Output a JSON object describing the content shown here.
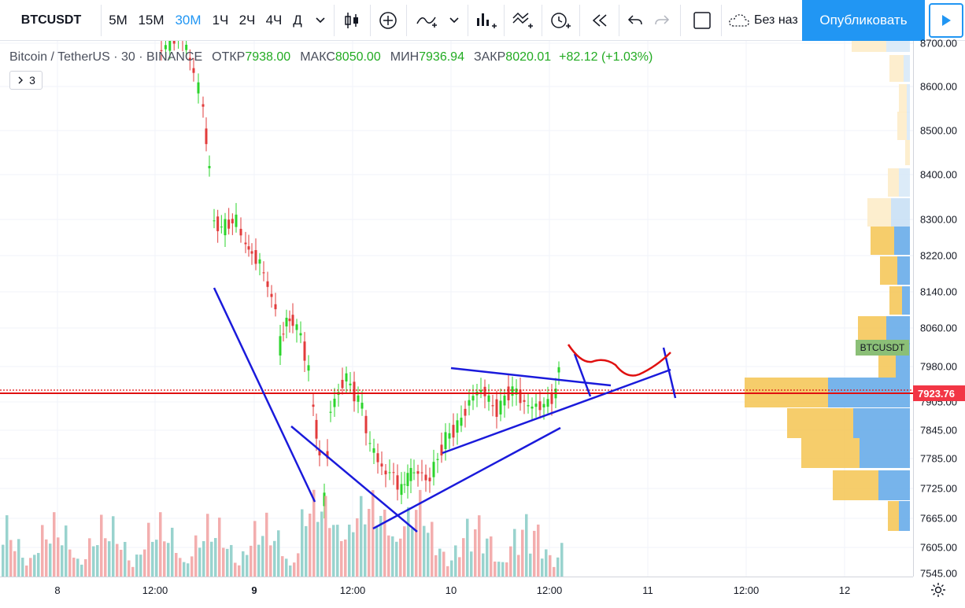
{
  "toolbar": {
    "symbol": "BTCUSDT",
    "intervals": [
      "5М",
      "15М",
      "30М",
      "1Ч",
      "2Ч",
      "4Ч",
      "Д"
    ],
    "active_interval": "30М",
    "template_label": "Без наз",
    "publish_label": "Опубликовать"
  },
  "legend": {
    "name": "Bitcoin / TetherUS · 30 · BINANCE",
    "open_label": "ОТКР",
    "open": "7938.00",
    "high_label": "МАКС",
    "high": "8050.00",
    "low_label": "МИН",
    "low": "7936.94",
    "close_label": "ЗАКР",
    "close": "8020.01",
    "change": "+82.12 (+1.03%)"
  },
  "indicator_badge": "3",
  "price_axis": {
    "labels": [
      "8700.00",
      "8600.00",
      "8500.00",
      "8400.00",
      "8300.00",
      "8220.00",
      "8140.00",
      "8060.00",
      "7980.00",
      "7905.00",
      "7845.00",
      "7785.00",
      "7725.00",
      "7665.00",
      "7605.00",
      "7545.00"
    ],
    "current_price": "7923.76",
    "symbol_tag": "BTCUSDT"
  },
  "time_axis": {
    "labels": [
      "8",
      "12:00",
      "9",
      "12:00",
      "10",
      "12:00",
      "11",
      "12:00",
      "12"
    ]
  },
  "colors": {
    "up": "#26a69a",
    "down": "#ef5350",
    "accent": "#2196f3",
    "drawing_blue": "#1a1adb",
    "drawing_red": "#e01010"
  }
}
